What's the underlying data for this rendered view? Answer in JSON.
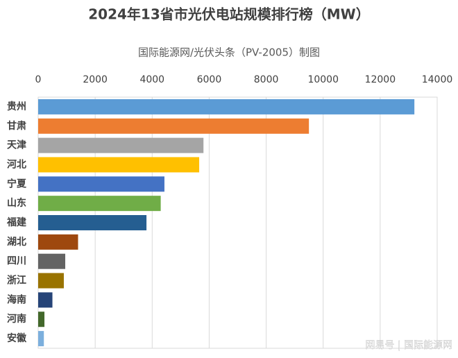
{
  "chart_data": {
    "type": "barh",
    "title": "2024年13省市光伏电站规模排行榜（MW）",
    "subtitle": "国际能源网/光伏头条（PV-2005）制图",
    "categories": [
      "贵州",
      "甘肃",
      "天津",
      "河北",
      "宁夏",
      "山东",
      "福建",
      "湖北",
      "四川",
      "浙江",
      "海南",
      "河南",
      "安徽"
    ],
    "values": [
      13200,
      9500,
      5800,
      5650,
      4430,
      4300,
      3800,
      1400,
      950,
      900,
      500,
      220,
      200
    ],
    "colors": [
      "#5b9bd5",
      "#ed7d31",
      "#a5a5a5",
      "#ffc000",
      "#4472c4",
      "#70ad47",
      "#255e91",
      "#9e480e",
      "#636363",
      "#997300",
      "#264478",
      "#43682b",
      "#7cafdd"
    ],
    "xlim": [
      0,
      14000
    ],
    "xticks": [
      0,
      2000,
      4000,
      6000,
      8000,
      10000,
      12000,
      14000
    ],
    "grid": true,
    "watermark": "网易号 | 国际能源网"
  }
}
